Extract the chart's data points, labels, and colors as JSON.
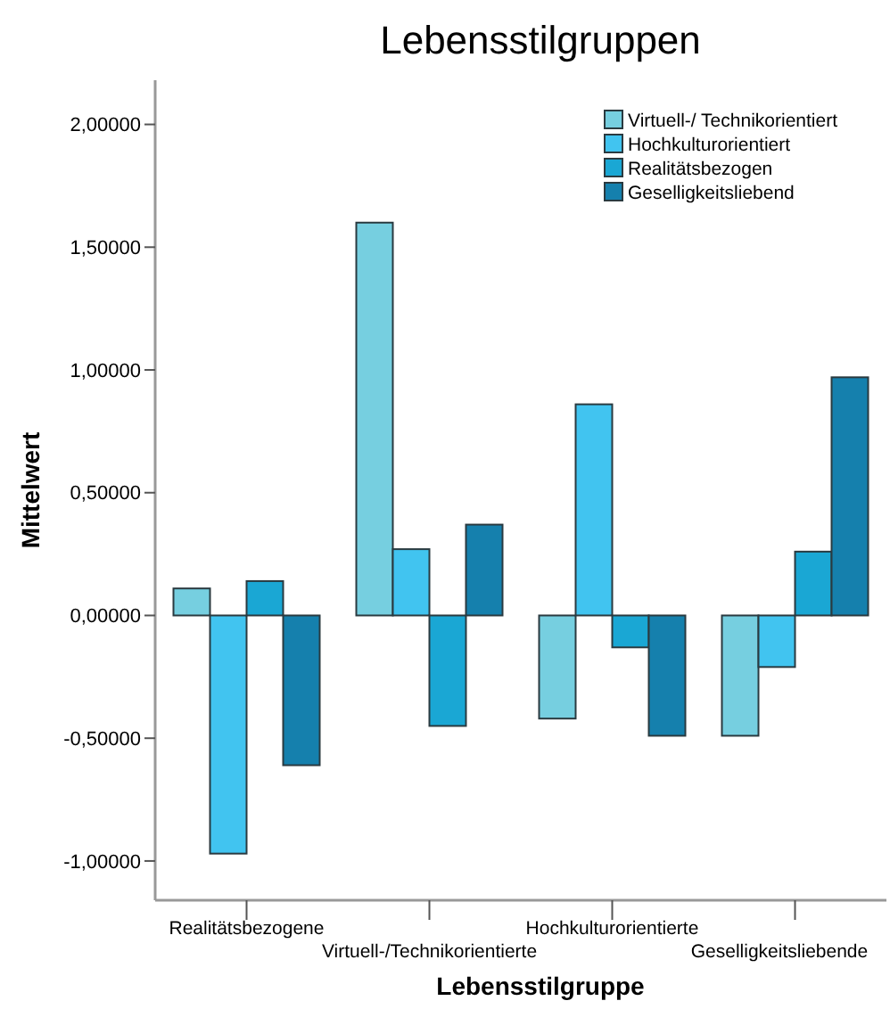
{
  "chart_data": {
    "type": "bar",
    "title": "Lebensstilgruppen",
    "xlabel": "Lebensstilgruppe",
    "ylabel": "Mittelwert",
    "categories": [
      "Realitätsbezogene",
      "Virtuell-/Technikorientierte",
      "Hochkulturorientierte",
      "Geselligkeitsliebende"
    ],
    "series": [
      {
        "name": "Virtuell-/ Technikorientiert",
        "color": "#76cfe0",
        "values": [
          0.11,
          1.6,
          -0.42,
          -0.49
        ]
      },
      {
        "name": "Hochkulturorientiert",
        "color": "#41c4f0",
        "values": [
          -0.97,
          0.27,
          0.86,
          -0.21
        ]
      },
      {
        "name": "Realitätsbezogen",
        "color": "#1aa7d4",
        "values": [
          0.14,
          -0.45,
          -0.13,
          0.26
        ]
      },
      {
        "name": "Geselligkeitsliebend",
        "color": "#1580ad",
        "values": [
          -0.61,
          0.37,
          -0.49,
          0.97
        ]
      }
    ],
    "ylim": [
      -1.16,
      2.18
    ],
    "yticks": [
      {
        "value": -1,
        "label": "-1,00000"
      },
      {
        "value": -0.5,
        "label": "-0,50000"
      },
      {
        "value": 0,
        "label": "0,00000"
      },
      {
        "value": 0.5,
        "label": "0,50000"
      },
      {
        "value": 1,
        "label": "1,00000"
      },
      {
        "value": 1.5,
        "label": "1,50000"
      },
      {
        "value": 2,
        "label": "2,00000"
      }
    ],
    "grid": false,
    "legend": "top right"
  }
}
